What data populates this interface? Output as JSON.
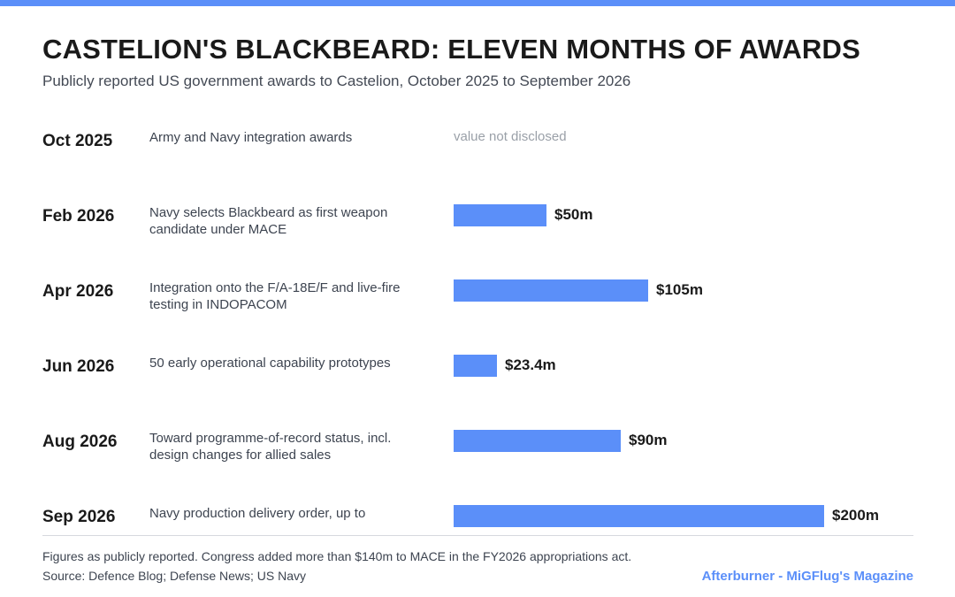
{
  "colors": {
    "accent": "#5b8ff9",
    "text": "#1a1a1a",
    "muted": "#9aa0a8"
  },
  "header": {
    "title": "CASTELION'S BLACKBEARD: ELEVEN MONTHS OF AWARDS",
    "subtitle": "Publicly reported US government awards to Castelion, October 2025 to September 2026"
  },
  "chart_data": {
    "type": "bar",
    "orientation": "horizontal",
    "unit": "US$ millions",
    "xlim": [
      0,
      200
    ],
    "grid": false,
    "categories": [
      "Oct 2025",
      "Feb 2026",
      "Apr 2026",
      "Jun 2026",
      "Aug 2026",
      "Sep 2026"
    ],
    "descriptions": [
      "Army and Navy integration awards",
      "Navy selects Blackbeard as first weapon candidate under MACE",
      "Integration onto the F/A-18E/F and live-fire testing in INDOPACOM",
      "50 early operational capability prototypes",
      "Toward programme-of-record status, incl. design changes for allied sales",
      "Navy production delivery order, up to"
    ],
    "values": [
      null,
      50,
      105,
      23.4,
      90,
      200
    ],
    "value_labels": [
      "value not disclosed",
      "$50m",
      "$105m",
      "$23.4m",
      "$90m",
      "$200m"
    ]
  },
  "footer": {
    "note": "Figures as publicly reported. Congress added more than $140m to MACE in the FY2026 appropriations act.",
    "source": "Source: Defence Blog; Defense News; US Navy",
    "brand": "Afterburner - MiGFlug's Magazine"
  }
}
